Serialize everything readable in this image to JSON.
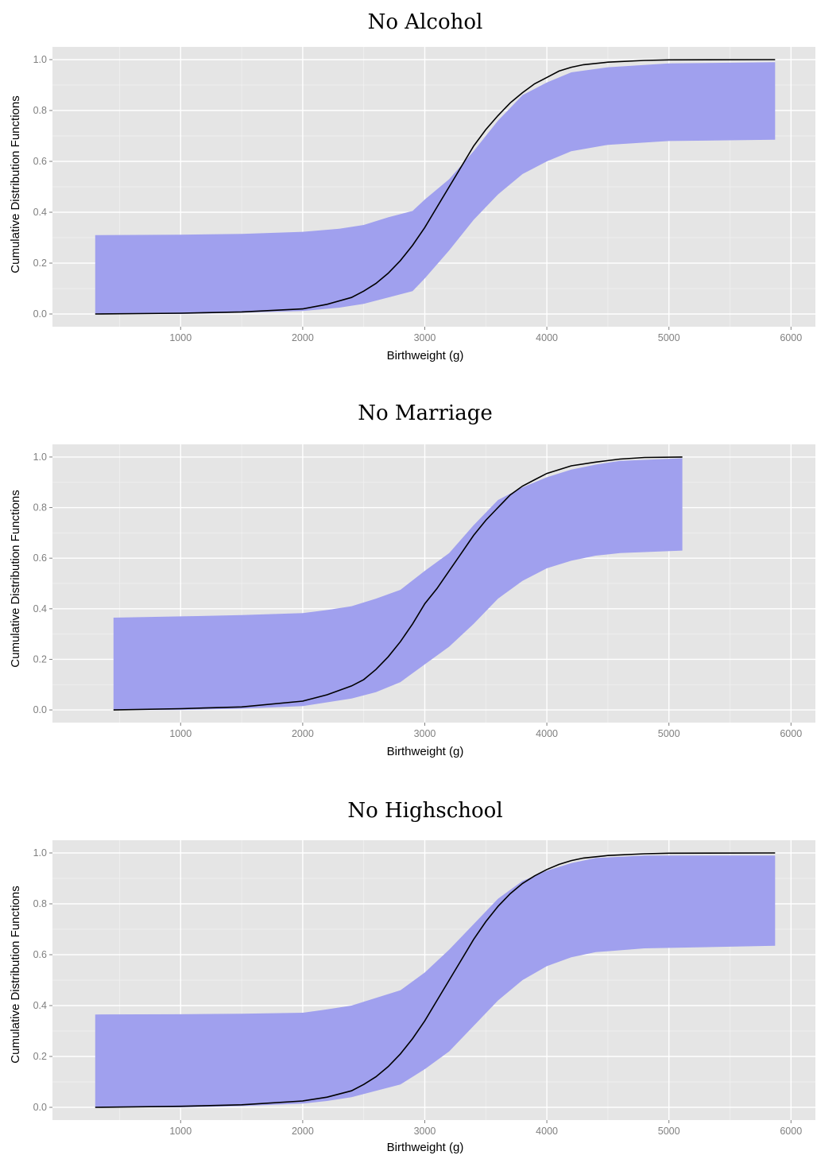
{
  "chart_data": [
    {
      "type": "area",
      "title": "No Alcohol",
      "xlabel": "Birthweight (g)",
      "ylabel": "Cumulative Distribution Functions",
      "xlim": [
        -50,
        6200
      ],
      "ylim": [
        -0.05,
        1.05
      ],
      "x_ticks": [
        "1000",
        "2000",
        "3000",
        "4000",
        "5000",
        "6000"
      ],
      "y_ticks": [
        "0.0",
        "0.2",
        "0.4",
        "0.6",
        "0.8",
        "1.0"
      ],
      "grid": true,
      "band_color": "#a0a0ee",
      "line_color": "#000000",
      "panel_bg": "#e5e5e5",
      "series": [
        {
          "kind": "band",
          "x": [
            300,
            1000,
            1500,
            2000,
            2300,
            2500,
            2700,
            2900,
            3000,
            3200,
            3400,
            3600,
            3800,
            4000,
            4200,
            4500,
            5000,
            5870
          ],
          "upper": [
            0.31,
            0.312,
            0.315,
            0.323,
            0.335,
            0.35,
            0.38,
            0.405,
            0.45,
            0.53,
            0.64,
            0.76,
            0.86,
            0.91,
            0.95,
            0.97,
            0.985,
            0.99
          ],
          "lower": [
            0.0,
            0.0,
            0.005,
            0.012,
            0.025,
            0.04,
            0.065,
            0.09,
            0.14,
            0.25,
            0.37,
            0.47,
            0.55,
            0.6,
            0.64,
            0.665,
            0.68,
            0.685
          ]
        },
        {
          "kind": "line",
          "x": [
            300,
            1000,
            1500,
            2000,
            2200,
            2400,
            2500,
            2600,
            2700,
            2800,
            2900,
            3000,
            3100,
            3200,
            3300,
            3400,
            3500,
            3600,
            3700,
            3800,
            3900,
            4000,
            4100,
            4200,
            4300,
            4500,
            4800,
            5000,
            5870
          ],
          "y": [
            0.0,
            0.003,
            0.008,
            0.02,
            0.038,
            0.065,
            0.09,
            0.12,
            0.16,
            0.21,
            0.27,
            0.34,
            0.42,
            0.5,
            0.58,
            0.66,
            0.725,
            0.78,
            0.83,
            0.87,
            0.905,
            0.93,
            0.955,
            0.97,
            0.98,
            0.99,
            0.997,
            0.999,
            1.0
          ]
        }
      ]
    },
    {
      "type": "area",
      "title": "No Marriage",
      "xlabel": "Birthweight (g)",
      "ylabel": "Cumulative Distribution Functions",
      "xlim": [
        -50,
        6200
      ],
      "ylim": [
        -0.05,
        1.05
      ],
      "x_ticks": [
        "1000",
        "2000",
        "3000",
        "4000",
        "5000",
        "6000"
      ],
      "y_ticks": [
        "0.0",
        "0.2",
        "0.4",
        "0.6",
        "0.8",
        "1.0"
      ],
      "grid": true,
      "band_color": "#a0a0ee",
      "line_color": "#000000",
      "panel_bg": "#e5e5e5",
      "series": [
        {
          "kind": "band",
          "x": [
            450,
            1000,
            1500,
            2000,
            2200,
            2400,
            2600,
            2800,
            3000,
            3200,
            3400,
            3600,
            3800,
            4000,
            4200,
            4400,
            4600,
            5110
          ],
          "upper": [
            0.365,
            0.37,
            0.375,
            0.383,
            0.395,
            0.41,
            0.44,
            0.475,
            0.55,
            0.62,
            0.73,
            0.83,
            0.88,
            0.92,
            0.95,
            0.97,
            0.985,
            0.995
          ],
          "lower": [
            0.0,
            0.0,
            0.005,
            0.015,
            0.03,
            0.045,
            0.07,
            0.11,
            0.18,
            0.25,
            0.34,
            0.44,
            0.51,
            0.56,
            0.59,
            0.61,
            0.62,
            0.63
          ]
        },
        {
          "kind": "line",
          "x": [
            450,
            1000,
            1500,
            2000,
            2200,
            2400,
            2500,
            2600,
            2700,
            2800,
            2900,
            3000,
            3100,
            3200,
            3300,
            3400,
            3500,
            3600,
            3700,
            3800,
            3900,
            4000,
            4200,
            4400,
            4600,
            4800,
            5110
          ],
          "y": [
            0.0,
            0.005,
            0.012,
            0.035,
            0.06,
            0.095,
            0.12,
            0.16,
            0.21,
            0.27,
            0.34,
            0.42,
            0.48,
            0.55,
            0.62,
            0.69,
            0.75,
            0.8,
            0.85,
            0.885,
            0.91,
            0.935,
            0.965,
            0.98,
            0.992,
            0.998,
            1.0
          ]
        }
      ]
    },
    {
      "type": "area",
      "title": "No Highschool",
      "xlabel": "Birthweight (g)",
      "ylabel": "Cumulative Distribution Functions",
      "xlim": [
        -50,
        6200
      ],
      "ylim": [
        -0.05,
        1.05
      ],
      "x_ticks": [
        "1000",
        "2000",
        "3000",
        "4000",
        "5000",
        "6000"
      ],
      "y_ticks": [
        "0.0",
        "0.2",
        "0.4",
        "0.6",
        "0.8",
        "1.0"
      ],
      "grid": true,
      "band_color": "#a0a0ee",
      "line_color": "#000000",
      "panel_bg": "#e5e5e5",
      "series": [
        {
          "kind": "band",
          "x": [
            300,
            1000,
            1500,
            2000,
            2200,
            2400,
            2600,
            2800,
            3000,
            3200,
            3400,
            3600,
            3800,
            4000,
            4200,
            4400,
            4800,
            5870
          ],
          "upper": [
            0.365,
            0.366,
            0.368,
            0.372,
            0.385,
            0.4,
            0.43,
            0.46,
            0.53,
            0.62,
            0.72,
            0.82,
            0.89,
            0.93,
            0.96,
            0.98,
            0.99,
            0.99
          ],
          "lower": [
            0.0,
            0.0,
            0.005,
            0.015,
            0.025,
            0.04,
            0.065,
            0.09,
            0.15,
            0.22,
            0.32,
            0.42,
            0.5,
            0.555,
            0.59,
            0.61,
            0.625,
            0.635
          ]
        },
        {
          "kind": "line",
          "x": [
            300,
            1000,
            1500,
            2000,
            2200,
            2400,
            2500,
            2600,
            2700,
            2800,
            2900,
            3000,
            3100,
            3200,
            3300,
            3400,
            3500,
            3600,
            3700,
            3800,
            3900,
            4000,
            4100,
            4200,
            4300,
            4500,
            4800,
            5000,
            5870
          ],
          "y": [
            0.0,
            0.004,
            0.01,
            0.025,
            0.04,
            0.065,
            0.09,
            0.12,
            0.16,
            0.21,
            0.27,
            0.34,
            0.42,
            0.5,
            0.58,
            0.66,
            0.73,
            0.79,
            0.84,
            0.88,
            0.91,
            0.935,
            0.955,
            0.97,
            0.98,
            0.99,
            0.997,
            0.999,
            1.0
          ]
        }
      ]
    }
  ]
}
